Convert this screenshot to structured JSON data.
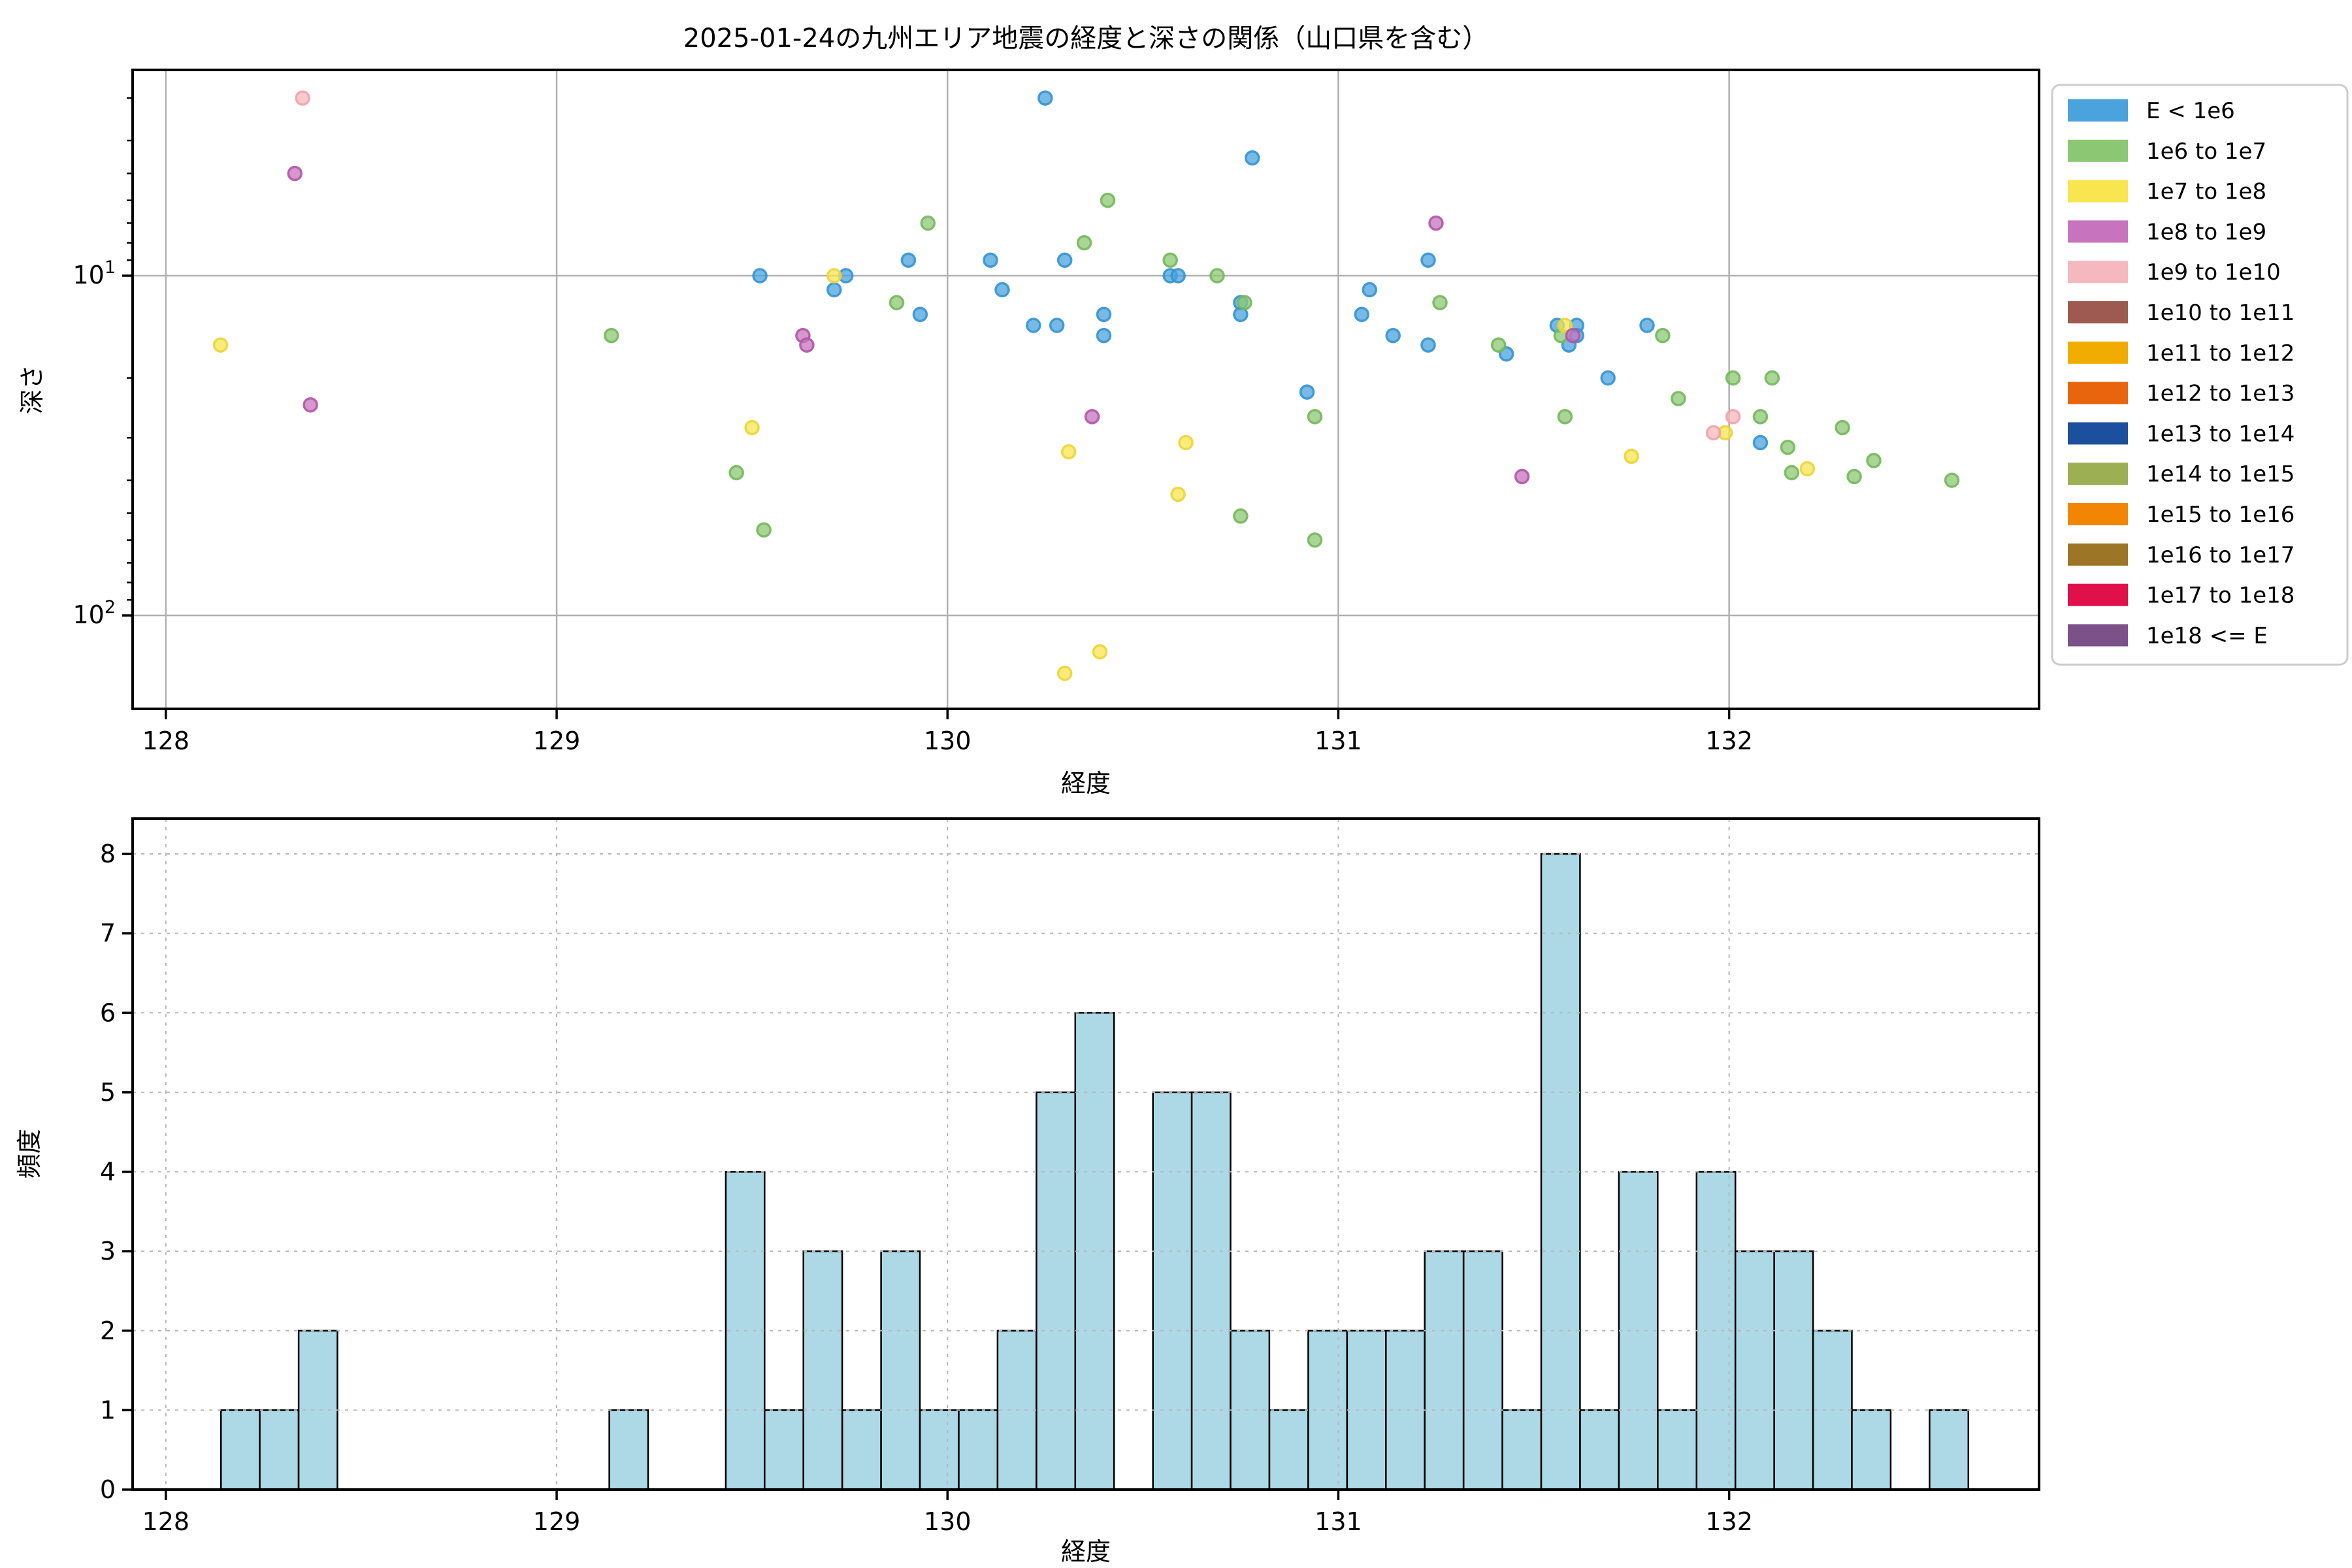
{
  "figure": {
    "title": "2025-01-24の九州エリア地震の経度と深さの関係（山口県を含む）",
    "background": "#ffffff"
  },
  "chart_data": [
    {
      "type": "scatter",
      "title": "2025-01-24の九州エリア地震の経度と深さの関係（山口県を含む）",
      "xlabel": "経度",
      "ylabel": "深さ",
      "x_range": [
        127.915,
        132.793
      ],
      "y_scale": "log-inverted-depth",
      "y_range_depth": [
        2.48,
        190
      ],
      "xticks": [
        128,
        129,
        130,
        131,
        132
      ],
      "yticks": [
        {
          "value": 10,
          "base": "10",
          "exp": "1"
        },
        {
          "value": 100,
          "base": "10",
          "exp": "2"
        }
      ],
      "y_minor_ticks": [
        3,
        4,
        5,
        6,
        7,
        8,
        9,
        20,
        30,
        40,
        50,
        60,
        70,
        80,
        90
      ],
      "grid": {
        "on": true,
        "style": "solid",
        "color": "#b0b0b0"
      },
      "legend_position": "outside-upper-right",
      "series": [
        {
          "name": "E < 1e6",
          "color": "#4AA3DC",
          "edge": "#3593D2",
          "points": [
            [
              129.52,
              10
            ],
            [
              129.71,
              11
            ],
            [
              129.74,
              10
            ],
            [
              129.9,
              9
            ],
            [
              129.93,
              13
            ],
            [
              130.11,
              9
            ],
            [
              130.14,
              11
            ],
            [
              130.22,
              14
            ],
            [
              130.25,
              3
            ],
            [
              130.28,
              14
            ],
            [
              130.3,
              9
            ],
            [
              130.4,
              13
            ],
            [
              130.4,
              15
            ],
            [
              130.57,
              10
            ],
            [
              130.59,
              10
            ],
            [
              130.75,
              12
            ],
            [
              130.75,
              13
            ],
            [
              130.78,
              4.5
            ],
            [
              130.92,
              22
            ],
            [
              131.06,
              13
            ],
            [
              131.08,
              11
            ],
            [
              131.14,
              15
            ],
            [
              131.23,
              9
            ],
            [
              131.23,
              16
            ],
            [
              131.43,
              17
            ],
            [
              131.56,
              14
            ],
            [
              131.59,
              16
            ],
            [
              131.61,
              14
            ],
            [
              131.61,
              15
            ],
            [
              131.69,
              20
            ],
            [
              131.79,
              14
            ],
            [
              132.08,
              31
            ]
          ]
        },
        {
          "name": "1e6 to 1e7",
          "color": "#8CC873",
          "edge": "#74B85C",
          "points": [
            [
              129.14,
              15
            ],
            [
              129.46,
              38
            ],
            [
              129.53,
              56
            ],
            [
              129.87,
              12
            ],
            [
              129.95,
              7
            ],
            [
              130.35,
              8
            ],
            [
              130.41,
              6
            ],
            [
              130.57,
              9
            ],
            [
              130.69,
              10
            ],
            [
              130.75,
              51
            ],
            [
              130.76,
              12
            ],
            [
              130.94,
              26
            ],
            [
              130.94,
              60
            ],
            [
              131.26,
              12
            ],
            [
              131.41,
              16
            ],
            [
              131.57,
              15
            ],
            [
              131.58,
              26
            ],
            [
              131.83,
              15
            ],
            [
              131.87,
              23
            ],
            [
              132.01,
              20
            ],
            [
              132.08,
              26
            ],
            [
              132.11,
              20
            ],
            [
              132.15,
              32
            ],
            [
              132.16,
              38
            ],
            [
              132.29,
              28
            ],
            [
              132.32,
              39
            ],
            [
              132.37,
              35
            ],
            [
              132.57,
              40
            ]
          ]
        },
        {
          "name": "1e7 to 1e8",
          "color": "#F8E54F",
          "edge": "#EBD53A",
          "points": [
            [
              128.14,
              16
            ],
            [
              129.5,
              28
            ],
            [
              129.71,
              10
            ],
            [
              130.3,
              148
            ],
            [
              130.31,
              33
            ],
            [
              130.39,
              128
            ],
            [
              130.59,
              44
            ],
            [
              130.61,
              31
            ],
            [
              131.58,
              14
            ],
            [
              131.75,
              34
            ],
            [
              131.99,
              29
            ],
            [
              132.2,
              37
            ]
          ]
        },
        {
          "name": "1e8 to 1e9",
          "color": "#C873BE",
          "edge": "#B155A8",
          "points": [
            [
              128.33,
              5
            ],
            [
              128.37,
              24
            ],
            [
              129.63,
              15
            ],
            [
              129.64,
              16
            ],
            [
              130.37,
              26
            ],
            [
              131.25,
              7
            ],
            [
              131.47,
              39
            ],
            [
              131.6,
              15
            ]
          ]
        },
        {
          "name": "1e9 to 1e10",
          "color": "#F5B8BE",
          "edge": "#EFA3AC",
          "points": [
            [
              128.35,
              3
            ],
            [
              131.96,
              29
            ],
            [
              132.01,
              26
            ]
          ]
        },
        {
          "name": "1e10 to 1e11",
          "color": "#9E5A50",
          "edge": "#8A4A42",
          "points": []
        },
        {
          "name": "1e11 to 1e12",
          "color": "#F1AC00",
          "edge": "#D99A00",
          "points": []
        },
        {
          "name": "1e12 to 1e13",
          "color": "#E8650D",
          "edge": "#CC5608",
          "points": []
        },
        {
          "name": "1e13 to 1e14",
          "color": "#1C4F9E",
          "edge": "#153F82",
          "points": []
        },
        {
          "name": "1e14 to 1e15",
          "color": "#9CAF52",
          "edge": "#869A42",
          "points": []
        },
        {
          "name": "1e15 to 1e16",
          "color": "#F28602",
          "edge": "#D67501",
          "points": []
        },
        {
          "name": "1e16 to 1e17",
          "color": "#9C7527",
          "edge": "#84621F",
          "points": []
        },
        {
          "name": "1e17 to 1e18",
          "color": "#E0104A",
          "edge": "#C00B3E",
          "points": []
        },
        {
          "name": "1e18 <= E",
          "color": "#7C5189",
          "edge": "#664272",
          "points": []
        }
      ]
    },
    {
      "type": "bar",
      "xlabel": "経度",
      "ylabel": "頻度",
      "x_range": [
        127.915,
        132.793
      ],
      "y_range": [
        0,
        8.45
      ],
      "xticks": [
        128,
        129,
        130,
        131,
        132
      ],
      "yticks": [
        0,
        1,
        2,
        3,
        4,
        5,
        6,
        7,
        8
      ],
      "grid": {
        "on": true,
        "style": "dashed",
        "color": "#b8b8b8"
      },
      "bar_color": "#ADD8E6",
      "bar_edge_color": "#000000",
      "bin_start": 128.141,
      "bin_width": 0.09936,
      "counts": [
        1,
        1,
        2,
        0,
        0,
        0,
        0,
        0,
        0,
        0,
        1,
        0,
        0,
        4,
        1,
        3,
        1,
        3,
        1,
        1,
        2,
        5,
        6,
        0,
        5,
        5,
        2,
        1,
        2,
        2,
        2,
        3,
        3,
        1,
        8,
        1,
        4,
        1,
        4,
        3,
        3,
        2,
        1,
        0,
        1
      ]
    }
  ]
}
